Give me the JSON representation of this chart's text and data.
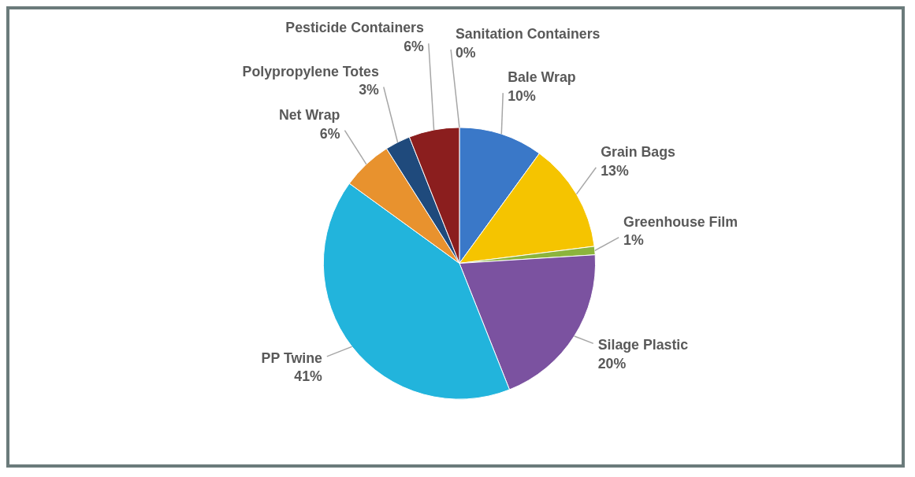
{
  "chart_data": {
    "type": "pie",
    "categories": [
      "Sanitation Containers",
      "Bale Wrap",
      "Grain Bags",
      "Greenhouse Film",
      "Silage Plastic",
      "PP Twine",
      "Net Wrap",
      "Polypropylene Totes",
      "Pesticide Containers"
    ],
    "values": [
      0,
      10,
      13,
      1,
      20,
      41,
      6,
      3,
      6
    ],
    "value_labels": [
      "0%",
      "10%",
      "13%",
      "1%",
      "20%",
      "41%",
      "6%",
      "3%",
      "6%"
    ],
    "colors": [
      "#a5a5a5",
      "#3a78c8",
      "#f5c400",
      "#8cb43c",
      "#7b52a0",
      "#22b4dc",
      "#e8922e",
      "#1f4a7c",
      "#8b1e1e"
    ]
  }
}
